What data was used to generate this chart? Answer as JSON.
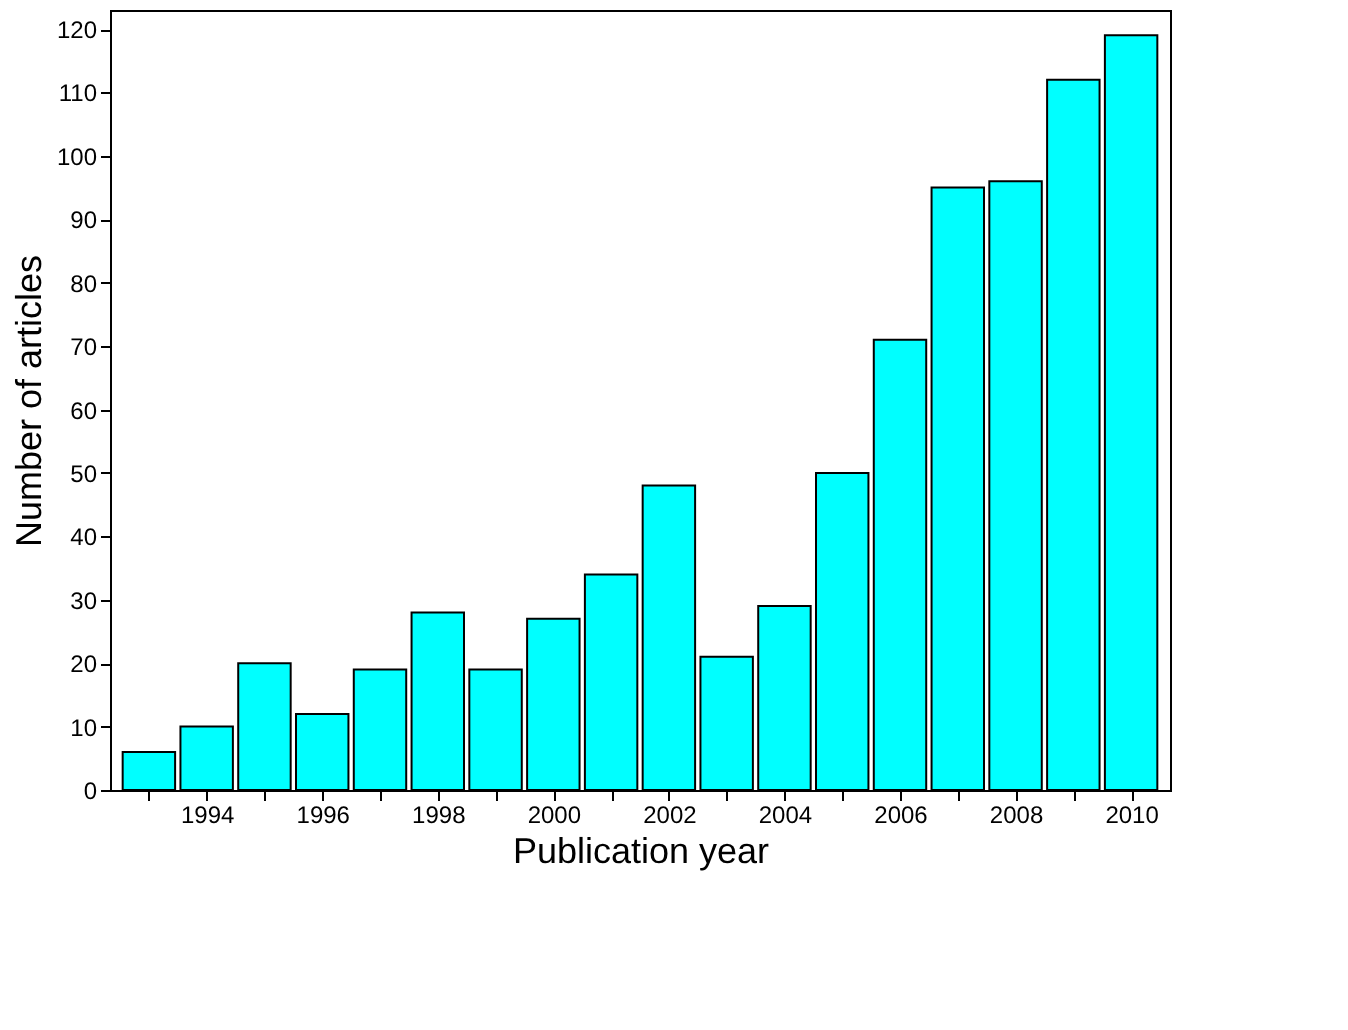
{
  "chart_data": {
    "type": "bar",
    "xlabel": "Publication year",
    "ylabel": "Number of articles",
    "x": [
      1993,
      1994,
      1995,
      1996,
      1997,
      1998,
      1999,
      2000,
      2001,
      2002,
      2003,
      2004,
      2005,
      2006,
      2007,
      2008,
      2009,
      2010
    ],
    "values": [
      6,
      10,
      20,
      12,
      19,
      28,
      19,
      27,
      34,
      48,
      21,
      29,
      50,
      71,
      95,
      96,
      112,
      119
    ],
    "color": "#00ffff",
    "xlim": [
      1992.5,
      2010.5
    ],
    "xticks": [
      {
        "value": 1993,
        "label": null
      },
      1994,
      {
        "value": 1995,
        "label": null
      },
      1996,
      {
        "value": 1997,
        "label": null
      },
      1998,
      {
        "value": 1999,
        "label": null
      },
      2000,
      {
        "value": 2001,
        "label": null
      },
      2002,
      {
        "value": 2003,
        "label": null
      },
      2004,
      {
        "value": 2005,
        "label": null
      },
      2006,
      {
        "value": 2007,
        "label": null
      },
      2008,
      {
        "value": 2009,
        "label": null
      },
      2010
    ],
    "ylim": [
      0,
      123
    ],
    "yticks": [
      0,
      10,
      20,
      30,
      40,
      50,
      60,
      70,
      80,
      90,
      100,
      110,
      120
    ],
    "grid": false
  }
}
